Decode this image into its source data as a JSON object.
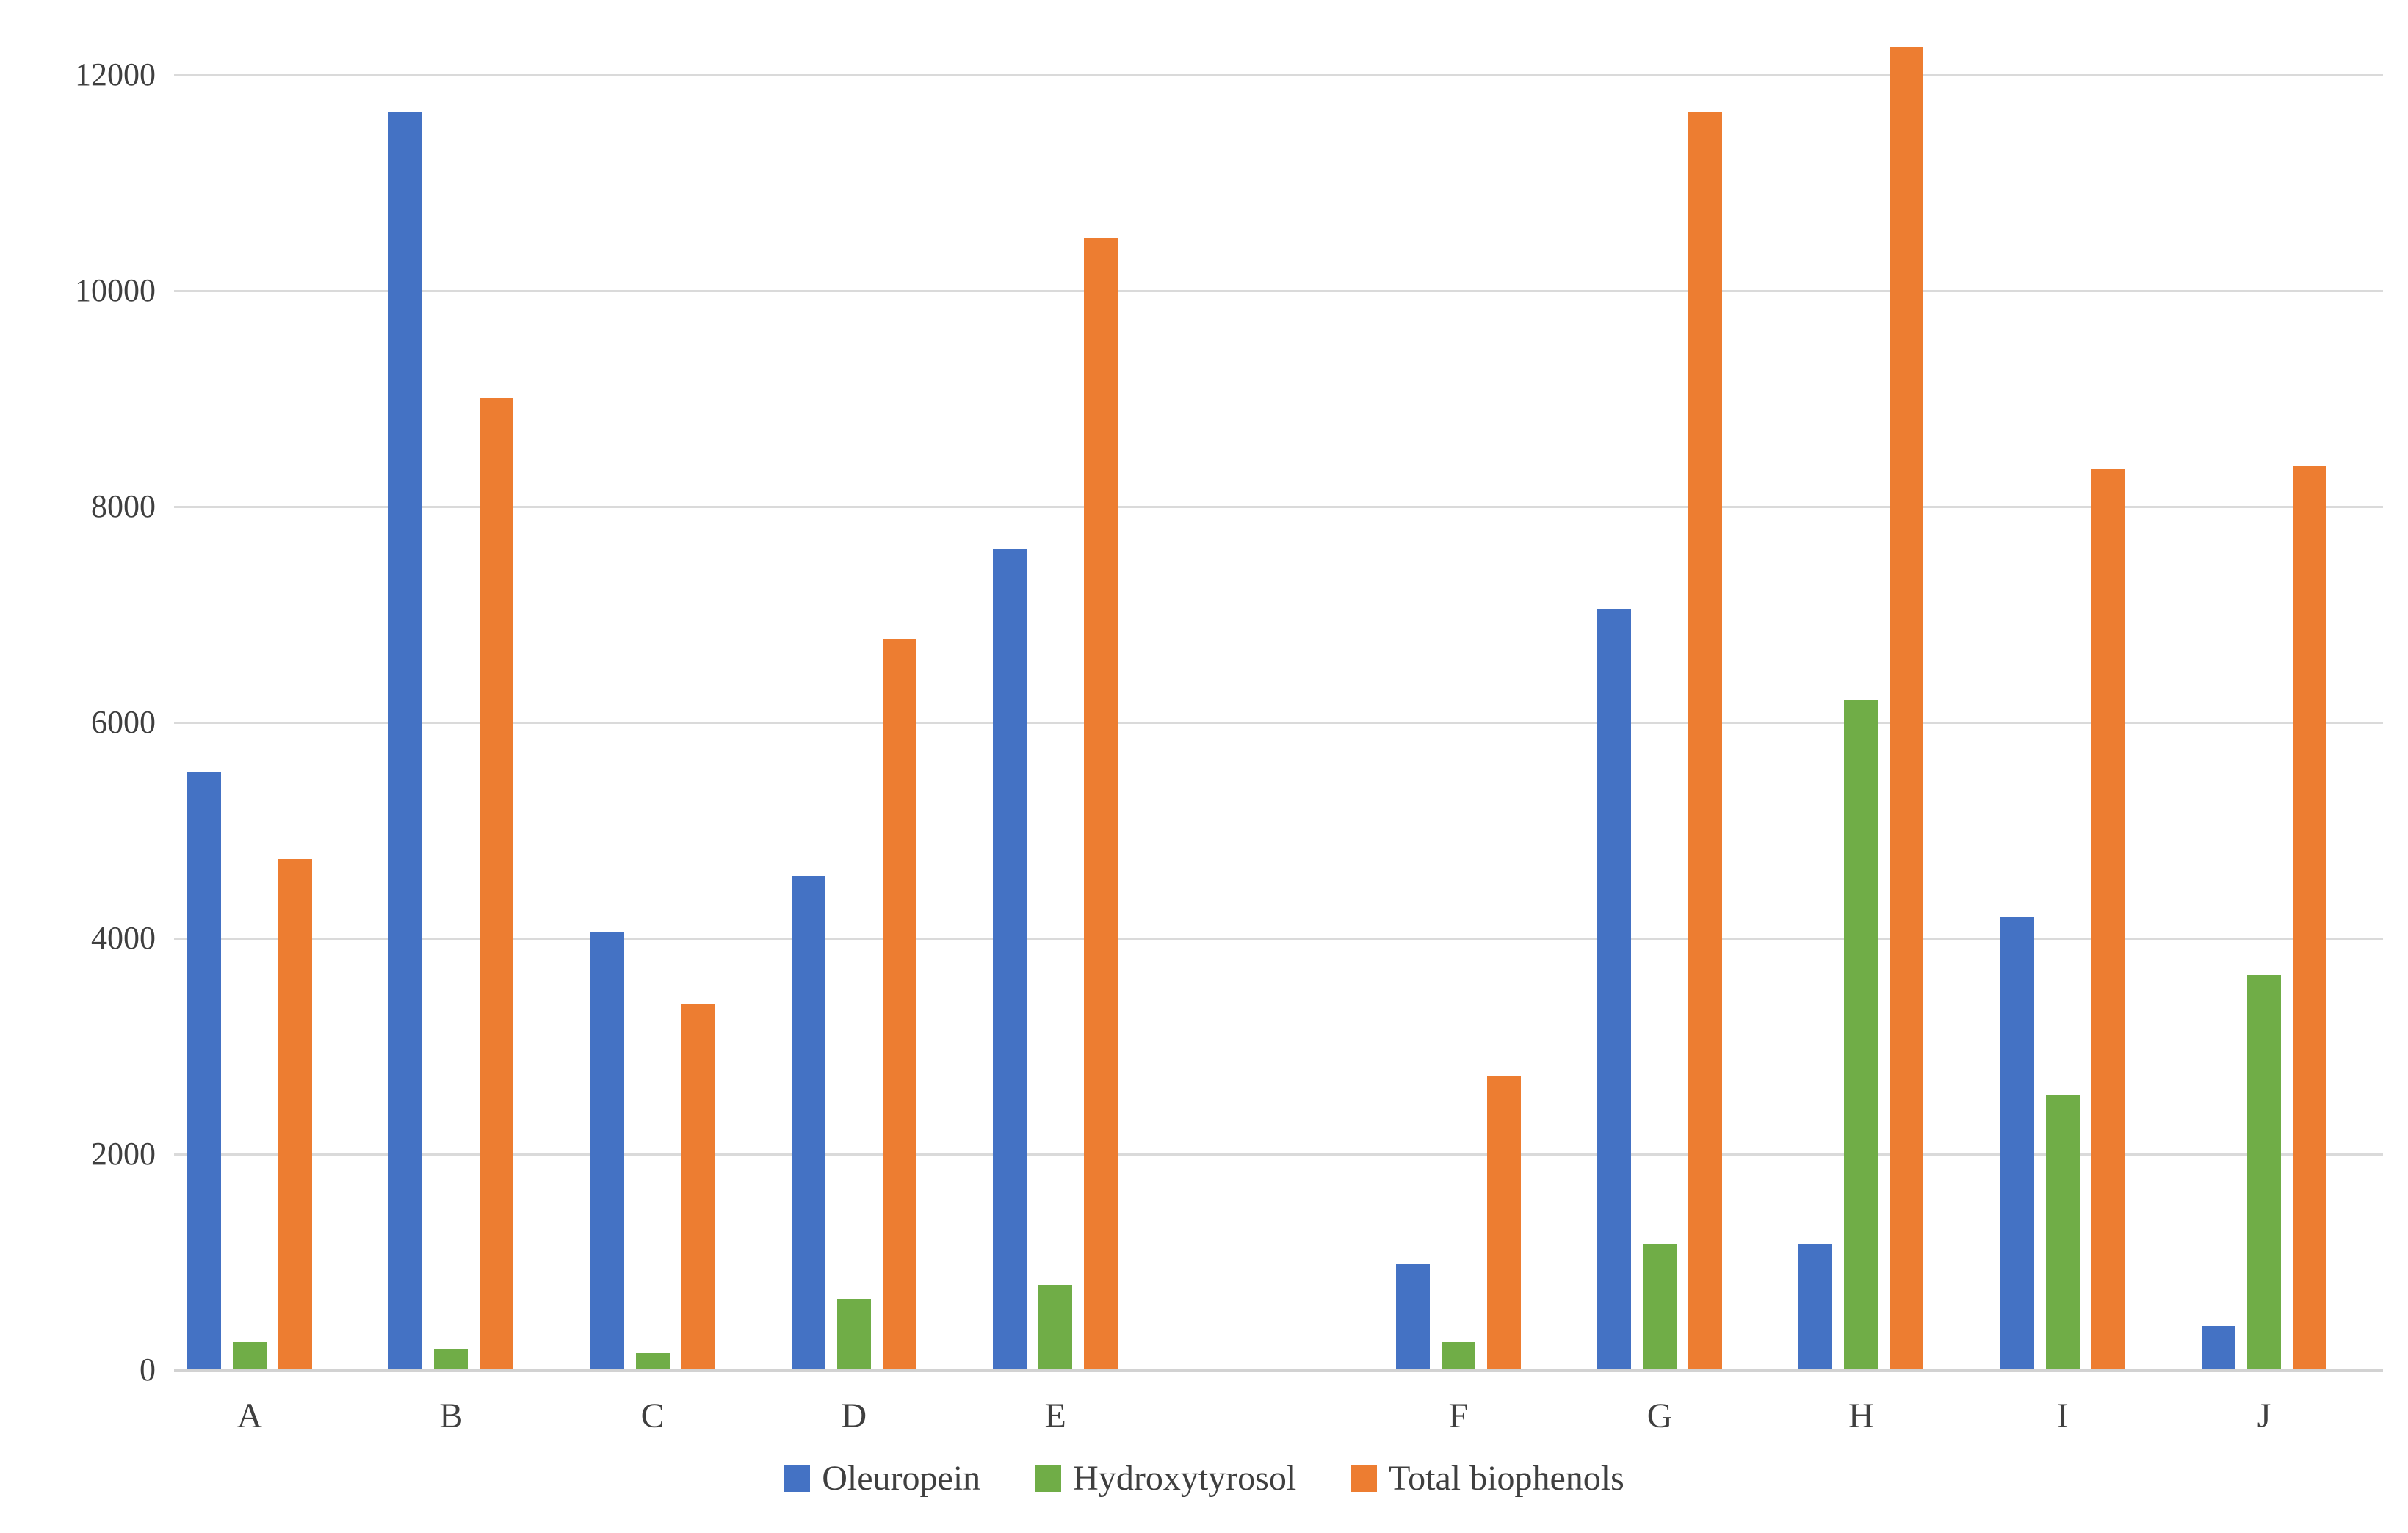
{
  "chart_data": {
    "type": "bar",
    "title": "",
    "xlabel": "",
    "ylabel": "",
    "categories": [
      "A",
      "B",
      "C",
      "D",
      "E",
      "F",
      "G",
      "H",
      "I",
      "J"
    ],
    "gap_after_index": 4,
    "series": [
      {
        "name": "Oleuropein",
        "color": "#4472C4",
        "values": [
          5540,
          11650,
          4050,
          4570,
          7600,
          970,
          7040,
          1160,
          4190,
          400
        ]
      },
      {
        "name": "Hydroxytyrosol",
        "color": "#70AD47",
        "values": [
          250,
          185,
          150,
          650,
          780,
          250,
          1160,
          6200,
          2540,
          3650
        ]
      },
      {
        "name": "Total biophenols",
        "color": "#ED7D31",
        "values": [
          4730,
          9000,
          3390,
          6770,
          10480,
          2720,
          11650,
          12250,
          8340,
          8370
        ]
      }
    ],
    "y_axis": {
      "min": 0,
      "max": 12000,
      "step": 2000,
      "tick_labels": [
        "0",
        "2000",
        "4000",
        "6000",
        "8000",
        "10000",
        "12000"
      ]
    },
    "grid": true,
    "legend_position": "bottom"
  },
  "style": {
    "gridline_color": "#DADADA",
    "axis_line_color": "#D2D2D2",
    "text_color": "#3F3F3F",
    "background": "#FFFFFF"
  }
}
